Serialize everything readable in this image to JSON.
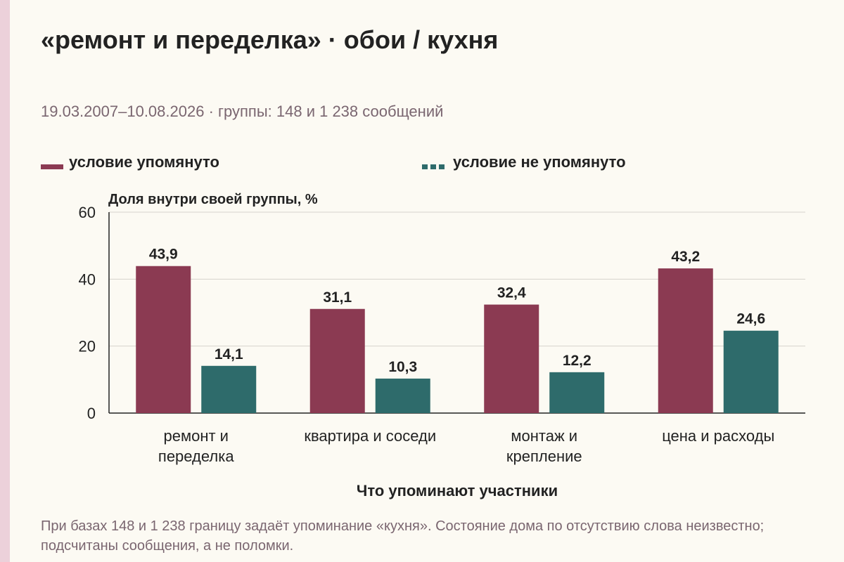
{
  "title": "«ремонт и переделка» · обои / кухня",
  "subtitle": "19.03.2007–10.08.2026 · группы: 148 и 1 238 сообщений",
  "legend": [
    {
      "label": "условие упомянуто",
      "color": "#8b3a52"
    },
    {
      "label": "условие не упомянуто",
      "color": "#2e6b6b"
    }
  ],
  "footnote": "При базах 148 и 1 238 границу задаёт упоминание «кухня». Состояние дома по отсутствию слова неизвестно; подсчитаны сообщения, а не поломки.",
  "chart_data": {
    "type": "bar",
    "ylabel": "Доля внутри своей группы, %",
    "xlabel": "Что упоминают участники",
    "ylim": [
      0,
      60
    ],
    "yticks": [
      0,
      20,
      40,
      60
    ],
    "grid": true,
    "legend_position": "top",
    "categories": [
      [
        "ремонт и",
        "переделка"
      ],
      [
        "квартира и соседи"
      ],
      [
        "монтаж и",
        "крепление"
      ],
      [
        "цена и расходы"
      ]
    ],
    "series": [
      {
        "name": "условие упомянуто",
        "color": "#8b3a52",
        "values": [
          43.9,
          31.1,
          32.4,
          43.2
        ]
      },
      {
        "name": "условие не упомянуто",
        "color": "#2e6b6b",
        "values": [
          14.1,
          10.3,
          12.2,
          24.6
        ]
      }
    ]
  }
}
